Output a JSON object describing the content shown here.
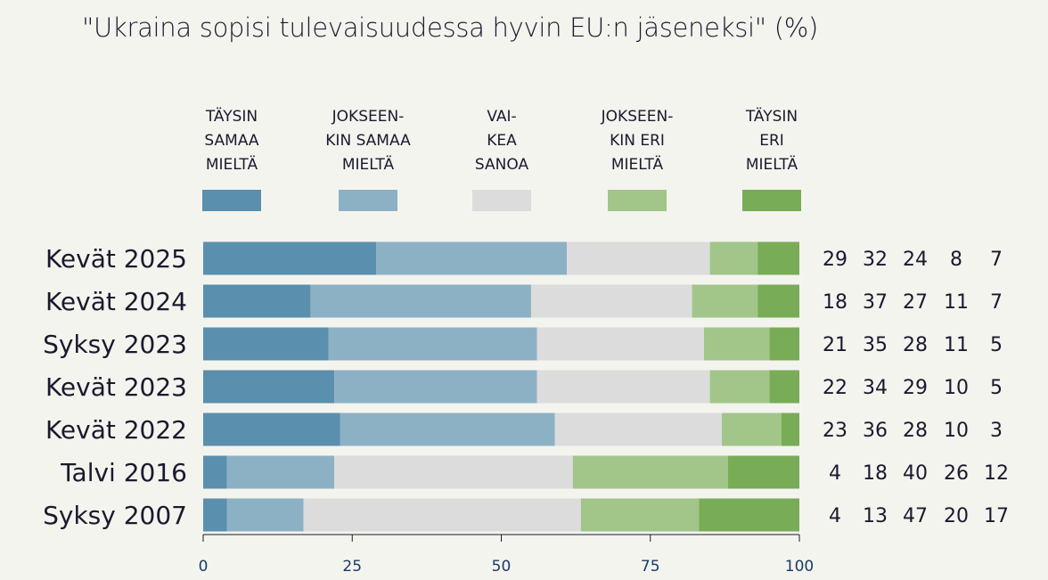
{
  "chart_data": {
    "type": "bar",
    "orientation": "horizontal",
    "stacked": true,
    "title": "\"Ukraina sopisi tulevaisuudessa hyvin EU:n jäseneksi\" (%)",
    "xlabel": "",
    "ylabel": "",
    "xlim": [
      0,
      100
    ],
    "xticks": [
      "0",
      "25",
      "50",
      "75",
      "100"
    ],
    "legend_placement": "top",
    "categories": [
      "Kevät 2025",
      "Kevät 2024",
      "Syksy 2023",
      "Kevät 2023",
      "Kevät 2022",
      "Talvi 2016",
      "Syksy 2007"
    ],
    "series": [
      {
        "name": "TÄYSIN SAMAA MIELTÄ",
        "lines": [
          "TÄYSIN",
          "SAMAA",
          "MIELTÄ"
        ],
        "color": "#5a8fae",
        "values": [
          29,
          18,
          21,
          22,
          23,
          4,
          4
        ]
      },
      {
        "name": "JOKSEEN-KIN SAMAA MIELTÄ",
        "lines": [
          "JOKSEEN-",
          "KIN SAMAA",
          "MIELTÄ"
        ],
        "color": "#8db1c4",
        "values": [
          32,
          37,
          35,
          34,
          36,
          18,
          13
        ]
      },
      {
        "name": "VAI-KEA SANOA",
        "lines": [
          "VAI-",
          "KEA",
          "SANOA"
        ],
        "color": "#dcdcdc",
        "values": [
          24,
          27,
          28,
          29,
          28,
          40,
          47
        ]
      },
      {
        "name": "JOKSEEN-KIN ERI MIELTÄ",
        "lines": [
          "JOKSEEN-",
          "KIN ERI",
          "MIELTÄ"
        ],
        "color": "#a2c58a",
        "values": [
          8,
          11,
          11,
          10,
          10,
          26,
          20
        ]
      },
      {
        "name": "TÄYSIN ERI MIELTÄ",
        "lines": [
          "TÄYSIN",
          "ERI",
          "MIELTÄ"
        ],
        "color": "#78ac56",
        "values": [
          7,
          7,
          5,
          5,
          3,
          12,
          17
        ]
      }
    ]
  }
}
